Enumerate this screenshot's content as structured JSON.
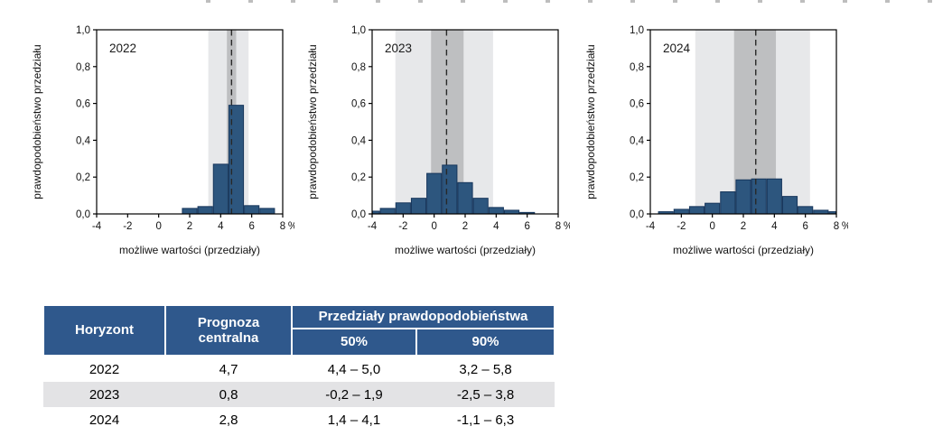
{
  "colors": {
    "bar_fill": "#2d567e",
    "bar_border": "#17365c",
    "band90": "#e7e8ea",
    "band50": "#bebfc1",
    "dash_line": "#282828",
    "frame": "#000000",
    "tick_text": "#111111",
    "table_header_bg": "#2f588c",
    "table_header_text": "#ffffff",
    "table_alt_row_bg": "#e3e3e5"
  },
  "chart_data": [
    {
      "type": "bar",
      "title": "2022",
      "ylabel": "prawdopodobieństwo przedziału",
      "xlabel": "możliwe wartości (przedziały)",
      "x_unit": "%",
      "xlim": [
        -4,
        8
      ],
      "ylim": [
        0,
        1
      ],
      "x_tick_step": 2,
      "y_tick_step": 0.2,
      "bars": [
        [
          1.5,
          2.5,
          0.03
        ],
        [
          2.5,
          3.5,
          0.04
        ],
        [
          3.5,
          4.5,
          0.27
        ],
        [
          4.5,
          5.5,
          0.59
        ],
        [
          5.5,
          6.5,
          0.045
        ],
        [
          6.5,
          7.5,
          0.03
        ]
      ],
      "central_forecast": 4.7,
      "band_50": [
        4.4,
        5.0
      ],
      "band_90": [
        3.2,
        5.8
      ]
    },
    {
      "type": "bar",
      "title": "2023",
      "ylabel": "prawdopodobieństwo przedziału",
      "xlabel": "możliwe wartości (przedziały)",
      "x_unit": "%",
      "xlim": [
        -4,
        8
      ],
      "ylim": [
        0,
        1
      ],
      "x_tick_step": 2,
      "y_tick_step": 0.2,
      "bars": [
        [
          -4,
          -3.5,
          0.015
        ],
        [
          -3.5,
          -2.5,
          0.03
        ],
        [
          -2.5,
          -1.5,
          0.06
        ],
        [
          -1.5,
          -0.5,
          0.085
        ],
        [
          -0.5,
          0.5,
          0.22
        ],
        [
          0.5,
          1.5,
          0.265
        ],
        [
          1.5,
          2.5,
          0.17
        ],
        [
          2.5,
          3.5,
          0.085
        ],
        [
          3.5,
          4.5,
          0.035
        ],
        [
          4.5,
          5.5,
          0.02
        ],
        [
          5.5,
          6.5,
          0.008
        ]
      ],
      "central_forecast": 0.8,
      "band_50": [
        -0.2,
        1.9
      ],
      "band_90": [
        -2.5,
        3.8
      ]
    },
    {
      "type": "bar",
      "title": "2024",
      "ylabel": "prawdopodobieństwo przedziału",
      "xlabel": "możliwe wartości (przedziały)",
      "x_unit": "%",
      "xlim": [
        -4,
        8
      ],
      "ylim": [
        0,
        1
      ],
      "x_tick_step": 2,
      "y_tick_step": 0.2,
      "bars": [
        [
          -3.5,
          -2.5,
          0.012
        ],
        [
          -2.5,
          -1.5,
          0.025
        ],
        [
          -1.5,
          -0.5,
          0.04
        ],
        [
          -0.5,
          0.5,
          0.058
        ],
        [
          0.5,
          1.5,
          0.12
        ],
        [
          1.5,
          2.5,
          0.185
        ],
        [
          2.5,
          3.5,
          0.19
        ],
        [
          3.5,
          4.5,
          0.19
        ],
        [
          4.5,
          5.5,
          0.095
        ],
        [
          5.5,
          6.5,
          0.04
        ],
        [
          6.5,
          7.5,
          0.02
        ],
        [
          7.5,
          8,
          0.012
        ]
      ],
      "central_forecast": 2.8,
      "band_50": [
        1.4,
        4.1
      ],
      "band_90": [
        -1.1,
        6.3
      ]
    }
  ],
  "table": {
    "header": {
      "horizon": "Horyzont",
      "central": "Prognoza centralna",
      "group": "Przedziały prawdopodobieństwa",
      "sub50": "50%",
      "sub90": "90%"
    },
    "rows": [
      {
        "horizon": "2022",
        "central": "4,7",
        "p50": "4,4 – 5,0",
        "p90": "3,2 – 5,8"
      },
      {
        "horizon": "2023",
        "central": "0,8",
        "p50": "-0,2 – 1,9",
        "p90": "-2,5 – 3,8"
      },
      {
        "horizon": "2024",
        "central": "2,8",
        "p50": "1,4 – 4,1",
        "p90": "-1,1 – 6,3"
      }
    ]
  }
}
